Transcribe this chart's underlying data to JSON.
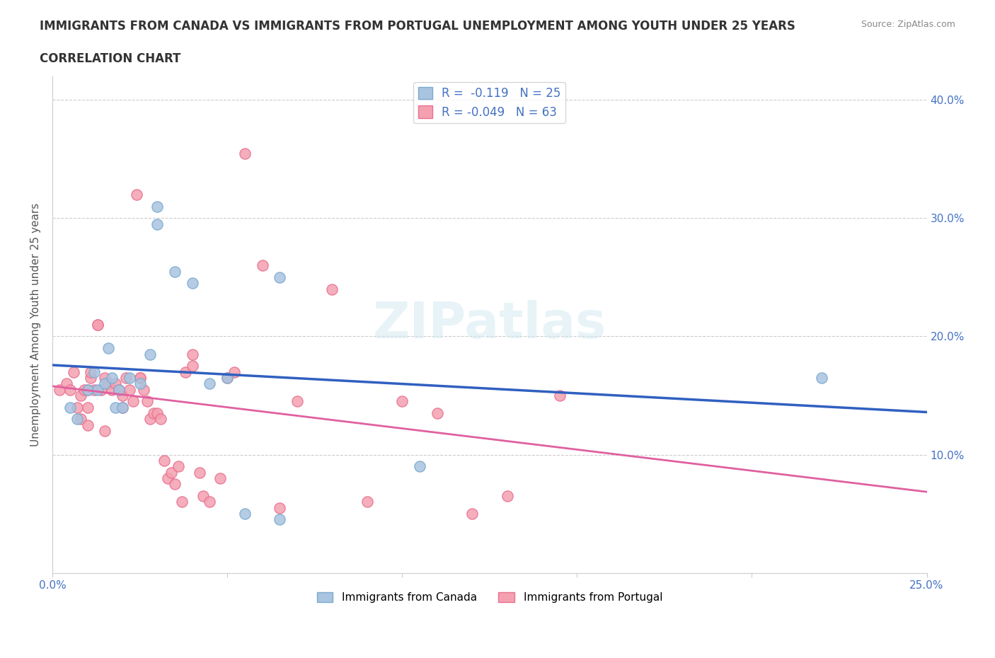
{
  "title_line1": "IMMIGRANTS FROM CANADA VS IMMIGRANTS FROM PORTUGAL UNEMPLOYMENT AMONG YOUTH UNDER 25 YEARS",
  "title_line2": "CORRELATION CHART",
  "source": "Source: ZipAtlas.com",
  "ylabel": "Unemployment Among Youth under 25 years",
  "xlim": [
    0.0,
    0.25
  ],
  "ylim": [
    0.0,
    0.42
  ],
  "yticks": [
    0.0,
    0.1,
    0.2,
    0.3,
    0.4
  ],
  "ytick_labels": [
    "",
    "10.0%",
    "20.0%",
    "30.0%",
    "40.0%"
  ],
  "xticks": [
    0.0,
    0.05,
    0.1,
    0.15,
    0.2,
    0.25
  ],
  "xtick_labels": [
    "0.0%",
    "",
    "",
    "",
    "",
    "25.0%"
  ],
  "canada_color": "#a8c4e0",
  "portugal_color": "#f4a0b0",
  "canada_edge": "#7aaacf",
  "portugal_edge": "#e87090",
  "trend_canada_color": "#3060c0",
  "trend_portugal_color": "#e060a0",
  "watermark": "ZIPatlas",
  "legend_R_canada": "R =  -0.119",
  "legend_N_canada": "N = 25",
  "legend_R_portugal": "R = -0.049",
  "legend_N_portugal": "N = 63",
  "canada_x": [
    0.005,
    0.007,
    0.01,
    0.012,
    0.013,
    0.015,
    0.016,
    0.017,
    0.018,
    0.019,
    0.02,
    0.022,
    0.025,
    0.028,
    0.03,
    0.03,
    0.035,
    0.04,
    0.045,
    0.05,
    0.055,
    0.065,
    0.065,
    0.105,
    0.22
  ],
  "canada_y": [
    0.14,
    0.13,
    0.155,
    0.17,
    0.155,
    0.16,
    0.19,
    0.165,
    0.14,
    0.155,
    0.14,
    0.165,
    0.16,
    0.185,
    0.31,
    0.295,
    0.255,
    0.245,
    0.16,
    0.165,
    0.05,
    0.25,
    0.045,
    0.09,
    0.165
  ],
  "portugal_x": [
    0.002,
    0.004,
    0.005,
    0.006,
    0.007,
    0.008,
    0.008,
    0.009,
    0.01,
    0.01,
    0.01,
    0.011,
    0.011,
    0.012,
    0.013,
    0.013,
    0.014,
    0.015,
    0.015,
    0.016,
    0.017,
    0.018,
    0.019,
    0.02,
    0.02,
    0.021,
    0.022,
    0.023,
    0.024,
    0.025,
    0.025,
    0.026,
    0.027,
    0.028,
    0.029,
    0.03,
    0.031,
    0.032,
    0.033,
    0.034,
    0.035,
    0.036,
    0.037,
    0.038,
    0.04,
    0.04,
    0.042,
    0.043,
    0.045,
    0.048,
    0.05,
    0.052,
    0.055,
    0.06,
    0.065,
    0.07,
    0.08,
    0.09,
    0.1,
    0.11,
    0.12,
    0.13,
    0.145
  ],
  "portugal_y": [
    0.155,
    0.16,
    0.155,
    0.17,
    0.14,
    0.15,
    0.13,
    0.155,
    0.155,
    0.14,
    0.125,
    0.165,
    0.17,
    0.155,
    0.21,
    0.21,
    0.155,
    0.12,
    0.165,
    0.16,
    0.155,
    0.16,
    0.155,
    0.15,
    0.14,
    0.165,
    0.155,
    0.145,
    0.32,
    0.165,
    0.165,
    0.155,
    0.145,
    0.13,
    0.135,
    0.135,
    0.13,
    0.095,
    0.08,
    0.085,
    0.075,
    0.09,
    0.06,
    0.17,
    0.185,
    0.175,
    0.085,
    0.065,
    0.06,
    0.08,
    0.165,
    0.17,
    0.355,
    0.26,
    0.055,
    0.145,
    0.24,
    0.06,
    0.145,
    0.135,
    0.05,
    0.065,
    0.15
  ]
}
